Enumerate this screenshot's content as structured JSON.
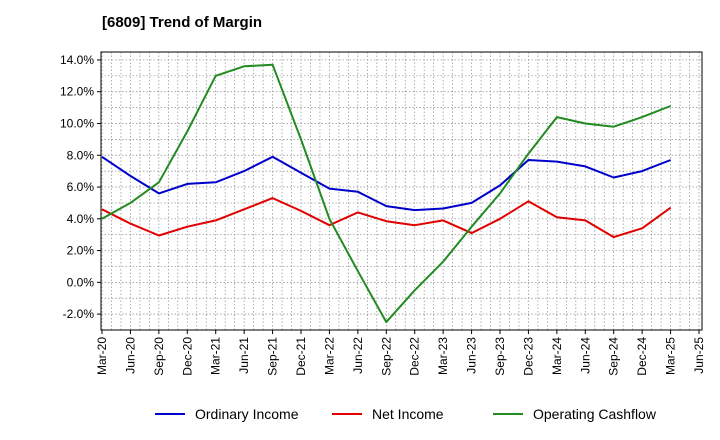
{
  "chart_data": {
    "type": "line",
    "title": "[6809]  Trend of Margin",
    "xlabel": "",
    "ylabel": "",
    "categories": [
      "Mar-20",
      "Jun-20",
      "Sep-20",
      "Dec-20",
      "Mar-21",
      "Jun-21",
      "Sep-21",
      "Dec-21",
      "Mar-22",
      "Jun-22",
      "Sep-22",
      "Dec-22",
      "Mar-23",
      "Jun-23",
      "Sep-23",
      "Dec-23",
      "Mar-24",
      "Jun-24",
      "Sep-24",
      "Dec-24",
      "Mar-25",
      "Jun-25"
    ],
    "yticks": [
      14.0,
      12.0,
      10.0,
      8.0,
      6.0,
      4.0,
      2.0,
      0.0,
      -2.0
    ],
    "ytick_labels": [
      "14.0%",
      "12.0%",
      "10.0%",
      "8.0%",
      "6.0%",
      "4.0%",
      "2.0%",
      "0.0%",
      "-2.0%"
    ],
    "ylim": [
      -3.0,
      14.5
    ],
    "grid": true,
    "legend_position": "bottom",
    "series": [
      {
        "name": "Ordinary Income",
        "color": "#0000cc",
        "values": [
          7.9,
          6.7,
          5.6,
          6.2,
          6.3,
          7.0,
          7.9,
          6.9,
          5.9,
          5.7,
          4.8,
          4.55,
          4.65,
          5.0,
          6.1,
          7.7,
          7.6,
          7.3,
          6.6,
          7.0,
          7.7,
          null
        ]
      },
      {
        "name": "Net Income",
        "color": "#e00000",
        "values": [
          4.6,
          3.7,
          2.95,
          3.5,
          3.9,
          4.6,
          5.3,
          4.5,
          3.6,
          4.4,
          3.85,
          3.6,
          3.9,
          3.1,
          4.0,
          5.1,
          4.1,
          3.9,
          2.85,
          3.4,
          4.7,
          null
        ]
      },
      {
        "name": "Operating Cashflow",
        "color": "#228b22",
        "values": [
          4.0,
          5.0,
          6.3,
          9.5,
          13.0,
          13.6,
          13.7,
          9.0,
          4.0,
          0.7,
          -2.5,
          -0.5,
          1.3,
          3.5,
          5.6,
          8.1,
          10.4,
          10.0,
          9.8,
          10.4,
          11.1,
          null
        ]
      }
    ]
  }
}
